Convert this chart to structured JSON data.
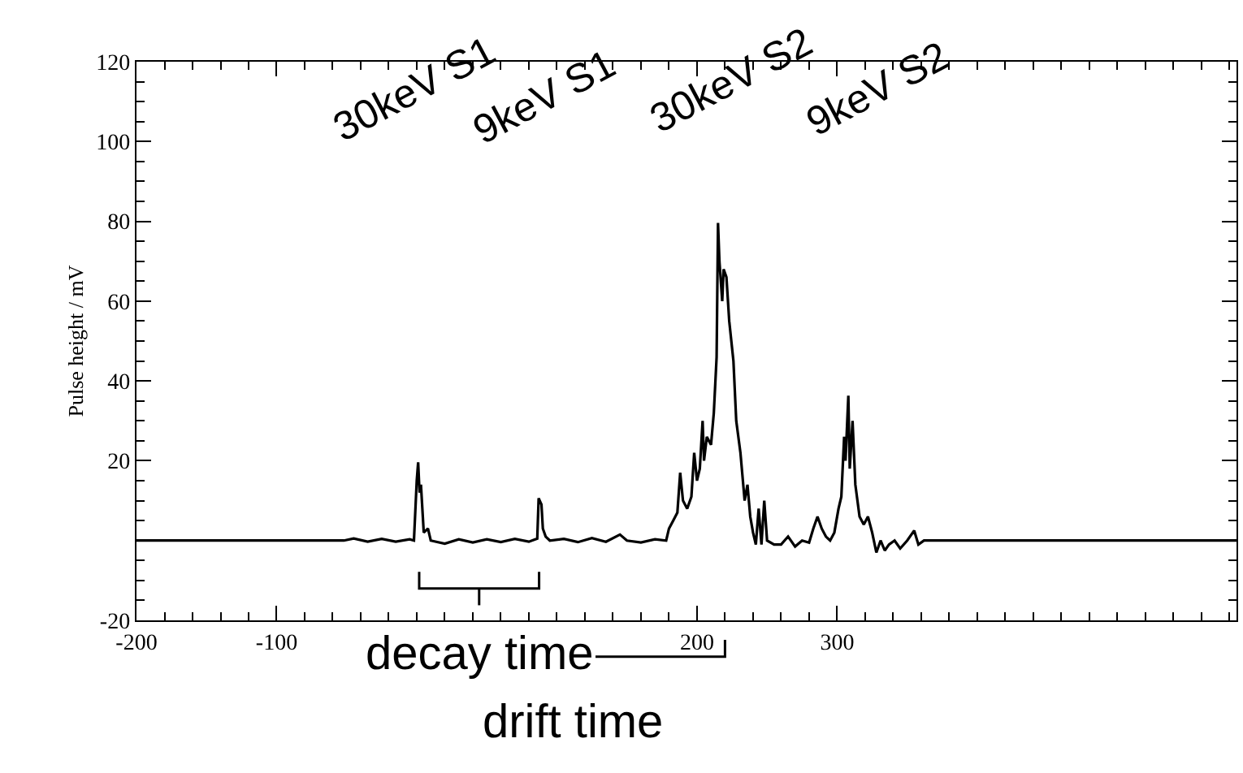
{
  "chart_data": {
    "type": "line",
    "ylabel": "Pulse height / mV",
    "xlim": [
      -200,
      585
    ],
    "ylim": [
      -20,
      120
    ],
    "xticks": [
      -200,
      -100,
      200,
      300
    ],
    "yticks": [
      {
        "value": -20,
        "label": "-20"
      },
      20,
      40,
      60,
      80,
      100,
      120
    ],
    "marker": "none",
    "line_style": "solid",
    "series": [
      {
        "color": "#000000",
        "x": [
          -200,
          -52,
          -45,
          -35,
          -25,
          -15,
          -5,
          -2,
          0,
          1,
          2,
          3,
          5,
          8,
          10,
          20,
          30,
          40,
          50,
          60,
          70,
          80,
          86,
          87,
          89,
          90,
          92,
          95,
          105,
          115,
          125,
          135,
          145,
          150,
          160,
          170,
          178,
          180,
          183,
          186,
          188,
          190,
          193,
          196,
          198,
          200,
          202,
          204,
          205,
          207,
          210,
          212,
          214,
          215,
          216,
          218,
          219,
          221,
          223,
          226,
          228,
          231,
          234,
          236,
          238,
          240,
          242,
          244,
          246,
          248,
          250,
          255,
          260,
          265,
          270,
          275,
          280,
          283,
          286,
          289,
          292,
          295,
          298,
          301,
          303,
          305,
          306,
          308,
          309,
          311,
          313,
          316,
          319,
          322,
          325,
          328,
          331,
          334,
          337,
          341,
          345,
          350,
          355,
          358,
          362,
          585
        ],
        "values": [
          0,
          0,
          0.5,
          -0.3,
          0.4,
          -0.3,
          0.3,
          0,
          15,
          19.6,
          12,
          14,
          2,
          3,
          0,
          -0.8,
          0.3,
          -0.5,
          0.3,
          -0.4,
          0.4,
          -0.3,
          0.5,
          10.6,
          9,
          3,
          1,
          0,
          0.4,
          -0.4,
          0.6,
          -0.3,
          1.5,
          0,
          -0.5,
          0.3,
          0,
          3,
          5,
          7,
          17,
          10,
          8,
          11,
          22,
          15,
          18,
          30,
          20,
          26,
          24,
          32,
          46,
          79.6,
          70,
          60,
          68,
          66,
          55,
          45,
          30,
          22,
          10,
          14,
          6,
          2,
          -1,
          8,
          -1,
          10,
          0,
          -1,
          -1,
          1,
          -1.5,
          0,
          -0.5,
          3,
          6,
          3,
          1,
          0,
          2,
          8,
          11,
          26,
          20,
          36.3,
          18,
          30,
          14,
          6,
          4,
          6,
          2,
          -3,
          0,
          -2.5,
          -1,
          0,
          -2,
          0,
          2.5,
          -1,
          0,
          0
        ]
      }
    ],
    "annotations": [
      "30keV S1",
      "9keV S1",
      "30keV S2",
      "9keV S2",
      "decay time",
      "drift time"
    ]
  }
}
